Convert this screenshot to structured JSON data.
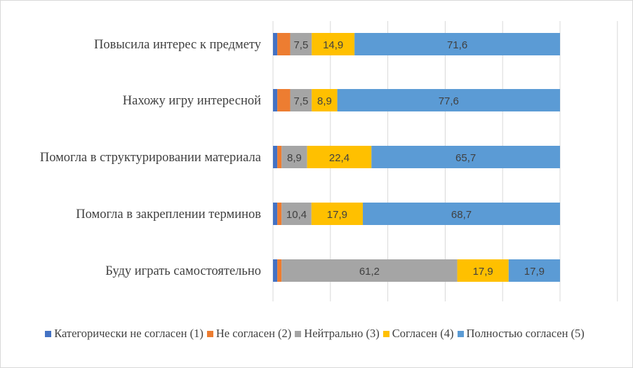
{
  "chart_data": {
    "type": "bar",
    "orientation": "horizontal",
    "stacked": true,
    "categories": [
      "Повысила интерес к предмету",
      "Нахожу игру интересной",
      "Помогла в структурировании материала",
      "Помогла в закреплении терминов",
      "Буду играть самостоятельно"
    ],
    "series": [
      {
        "name": "Категорически не согласен (1)",
        "color": "#4472C4",
        "values": [
          1.5,
          1.5,
          1.5,
          1.5,
          1.5
        ],
        "labels": [
          "",
          "",
          "",
          "",
          ""
        ]
      },
      {
        "name": "Не согласен (2)",
        "color": "#ED7D31",
        "values": [
          4.5,
          4.5,
          1.5,
          1.5,
          1.5
        ],
        "labels": [
          "",
          "",
          "",
          "",
          ""
        ]
      },
      {
        "name": "Нейтрально (3)",
        "color": "#A5A5A5",
        "values": [
          7.5,
          7.5,
          8.9,
          10.4,
          61.2
        ],
        "labels": [
          "7,5",
          "7,5",
          "8,9",
          "10,4",
          "61,2"
        ]
      },
      {
        "name": "Согласен (4)",
        "color": "#FFC000",
        "values": [
          14.9,
          8.9,
          22.4,
          17.9,
          17.9
        ],
        "labels": [
          "14,9",
          "8,9",
          "22,4",
          "17,9",
          "17,9"
        ]
      },
      {
        "name": "Полностью согласен (5)",
        "color": "#5B9BD5",
        "values": [
          71.6,
          77.6,
          65.7,
          68.7,
          17.9
        ],
        "labels": [
          "71,6",
          "77,6",
          "65,7",
          "68,7",
          "17,9"
        ]
      }
    ],
    "xlim": [
      0,
      120
    ],
    "grid": "vertical",
    "legend": "bottom"
  }
}
